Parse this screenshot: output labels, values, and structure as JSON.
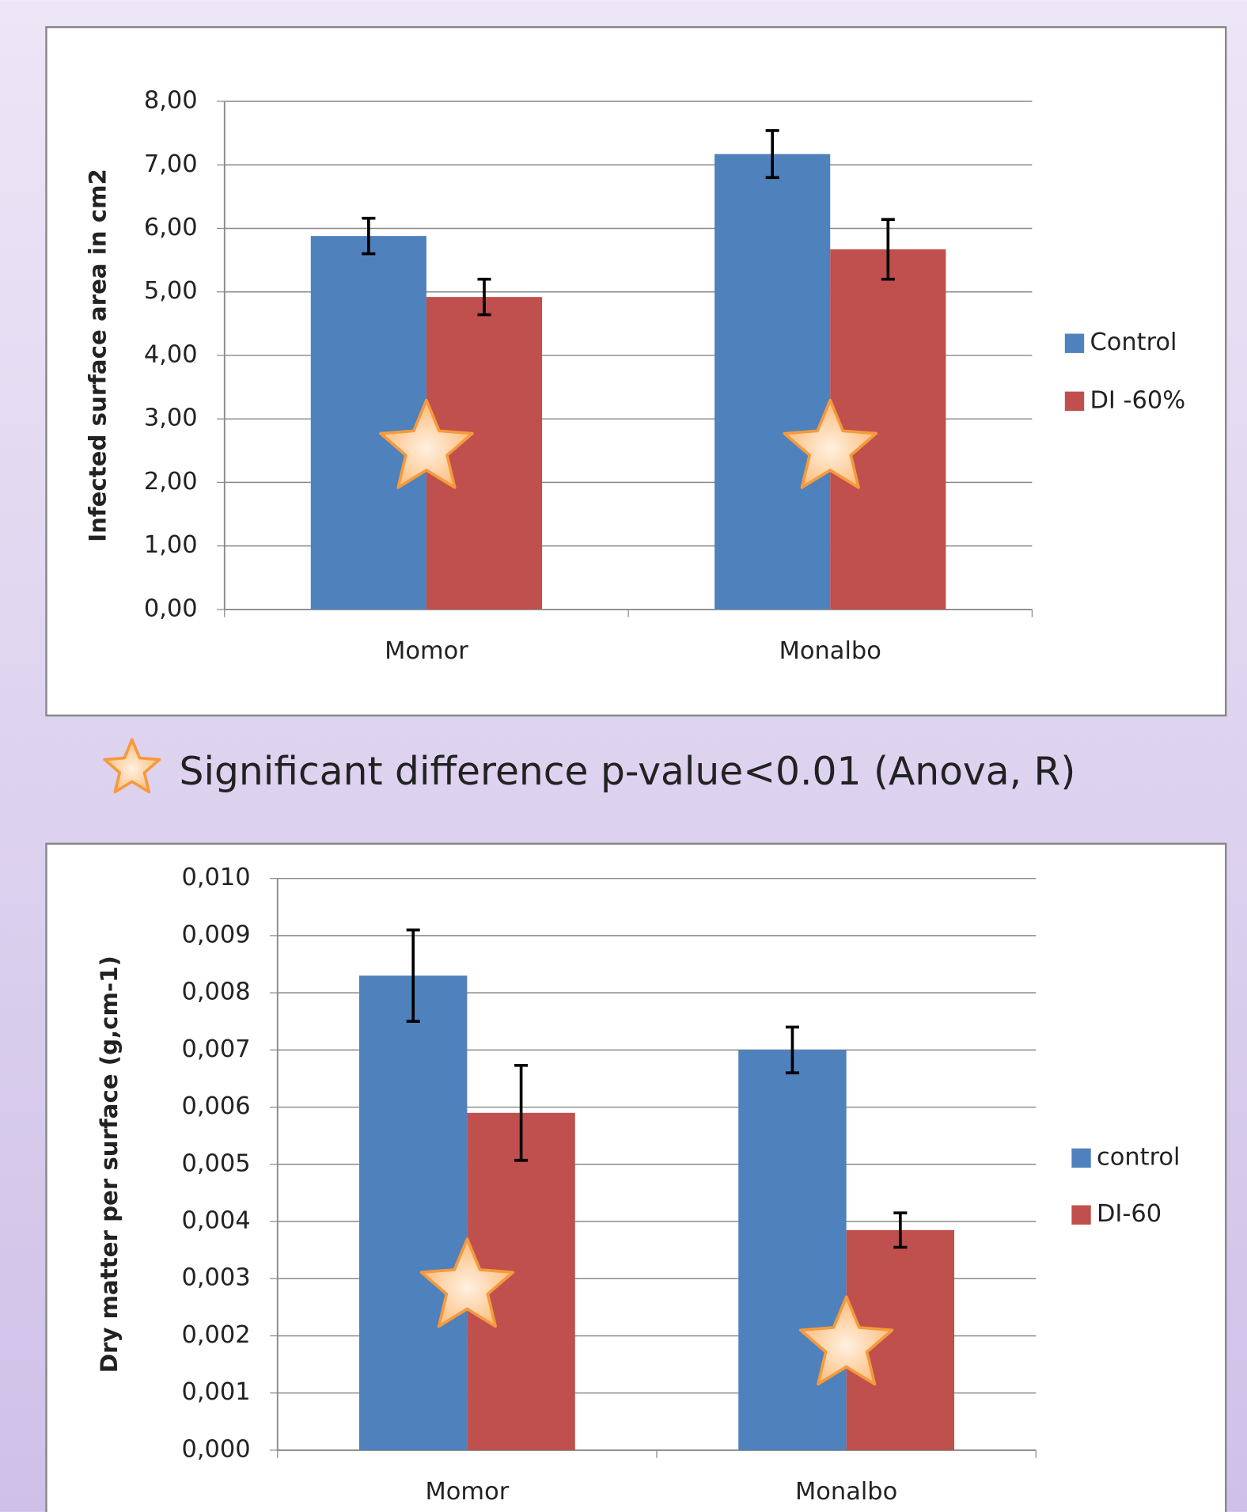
{
  "chart_data": [
    {
      "type": "bar",
      "y_label": "Infected surface area in cm2",
      "categories": [
        "Momor",
        "Monalbo"
      ],
      "series": [
        {
          "name": "Control",
          "color": "#4f81bd",
          "values": [
            5.88,
            7.17
          ],
          "errors": [
            0.28,
            0.37
          ]
        },
        {
          "name": "DI -60%",
          "color": "#c0504d",
          "values": [
            4.92,
            5.67
          ],
          "errors": [
            0.28,
            0.47
          ]
        }
      ],
      "ylim": [
        0,
        8
      ],
      "yticks": [
        {
          "value": 0,
          "label": "0,00"
        },
        {
          "value": 1,
          "label": "1,00"
        },
        {
          "value": 2,
          "label": "2,00"
        },
        {
          "value": 3,
          "label": "3,00"
        },
        {
          "value": 4,
          "label": "4,00"
        },
        {
          "value": 5,
          "label": "5,00"
        },
        {
          "value": 6,
          "label": "6,00"
        },
        {
          "value": 7,
          "label": "7,00"
        },
        {
          "value": 8,
          "label": "8,00"
        }
      ],
      "grid": true,
      "legend": "right"
    },
    {
      "type": "bar",
      "y_label": "Dry matter per surface (g,cm-1)",
      "categories": [
        "Momor",
        "Monalbo"
      ],
      "series": [
        {
          "name": "control",
          "color": "#4f81bd",
          "values": [
            0.0083,
            0.007
          ],
          "errors": [
            0.0008,
            0.0004
          ]
        },
        {
          "name": "DI-60",
          "color": "#c0504d",
          "values": [
            0.0059,
            0.00385
          ],
          "errors": [
            0.00083,
            0.0003
          ]
        }
      ],
      "ylim": [
        0,
        0.01
      ],
      "yticks": [
        {
          "value": 0,
          "label": "0,000"
        },
        {
          "value": 0.001,
          "label": "0,001"
        },
        {
          "value": 0.002,
          "label": "0,002"
        },
        {
          "value": 0.003,
          "label": "0,003"
        },
        {
          "value": 0.004,
          "label": "0,004"
        },
        {
          "value": 0.005,
          "label": "0,005"
        },
        {
          "value": 0.006,
          "label": "0,006"
        },
        {
          "value": 0.007,
          "label": "0,007"
        },
        {
          "value": 0.008,
          "label": "0,008"
        },
        {
          "value": 0.009,
          "label": "0,009"
        },
        {
          "value": 0.01,
          "label": "0,010"
        }
      ],
      "grid": true,
      "legend": "right"
    }
  ],
  "note": "Significant difference p-value<0.01 (Anova, R)"
}
